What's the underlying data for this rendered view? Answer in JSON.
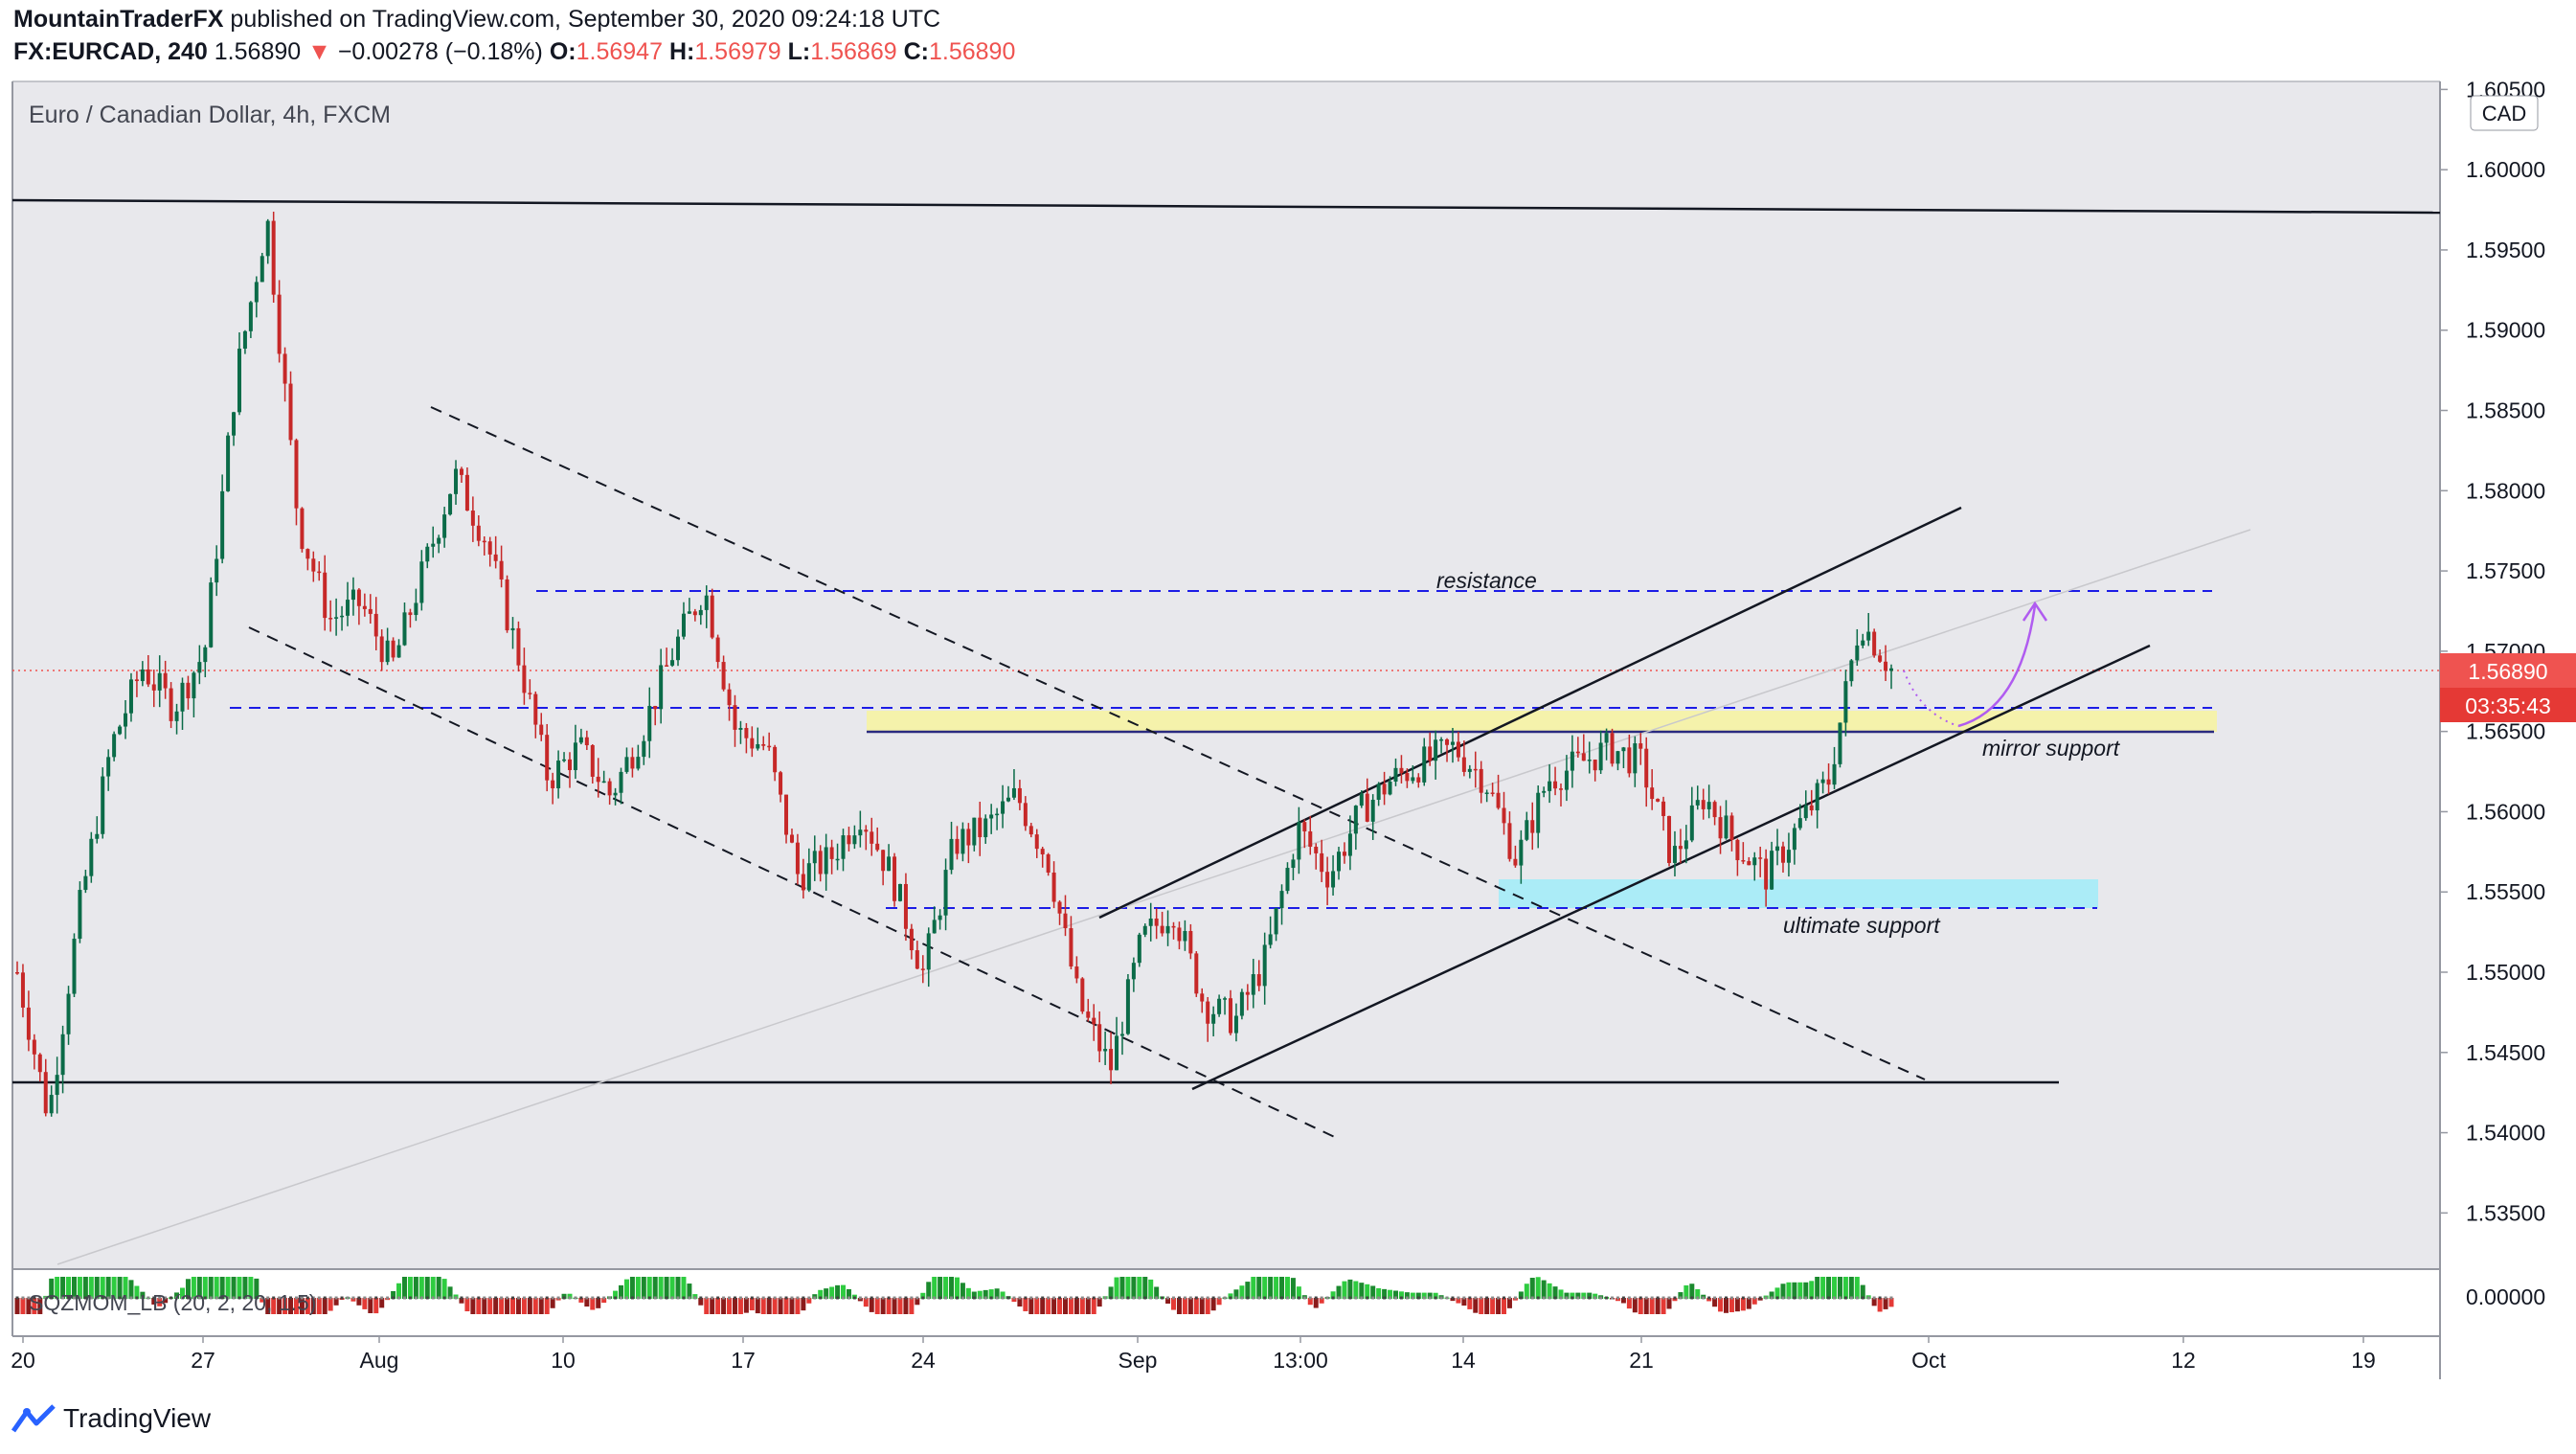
{
  "header": {
    "author": "MountainTraderFX",
    "published_text": " published on TradingView.com, September 30, 2020 09:24:18 UTC",
    "symbol": "FX:EURCAD, 240",
    "last_price": "1.56890",
    "change": "−0.00278 (−0.18%)",
    "open_label": "O:",
    "open": "1.56947",
    "high_label": "H:",
    "high": "1.56979",
    "low_label": "L:",
    "low": "1.56869",
    "close_label": "C:",
    "close": "1.56890"
  },
  "chart_title": "Euro / Canadian Dollar, 4h, FXCM",
  "currency_badge": "CAD",
  "price_badge": "1.56890",
  "countdown_badge": "03:35:43",
  "indicator_label": "SQZMOM_LB (20, 2, 20, 1.5)",
  "indicator_axis_label": "0.00000",
  "annotations": {
    "resistance": "resistance",
    "mirror_support": "mirror support",
    "ultimate_support": "ultimate support"
  },
  "brand": "TradingView",
  "colors": {
    "bull": "#26a69a",
    "bear": "#ef5350",
    "bull_dark": "#0b6b48",
    "bear_dark": "#c62828",
    "background": "#e8e8ec",
    "guide_blue": "#1c1ce6",
    "yellow_zone": "#f5f2a8",
    "cyan_zone": "#a8ecf8",
    "arrow": "#b05cf0"
  },
  "chart_data": {
    "type": "candlestick",
    "title": "Euro / Canadian Dollar, 4h, FXCM",
    "y_axis": {
      "ticks": [
        "1.60500",
        "1.60000",
        "1.59500",
        "1.59000",
        "1.58500",
        "1.58000",
        "1.57500",
        "1.57000",
        "1.56500",
        "1.56000",
        "1.55500",
        "1.55000",
        "1.54500",
        "1.54000",
        "1.53500"
      ],
      "range": [
        1.5315,
        1.6055
      ]
    },
    "x_axis": {
      "ticks": [
        "20",
        "27",
        "Aug",
        "10",
        "17",
        "24",
        "Sep",
        "13:00",
        "14",
        "21",
        "Oct",
        "12",
        "19"
      ]
    },
    "price_path": [
      [
        "Jul 20",
        1.55
      ],
      [
        "Jul 21",
        1.541
      ],
      [
        "Jul 23",
        1.554
      ],
      [
        "Jul 26",
        1.564
      ],
      [
        "Jul 27",
        1.569
      ],
      [
        "Jul 28",
        1.5665
      ],
      [
        "Jul 29",
        1.57
      ],
      [
        "Jul 30",
        1.587
      ],
      [
        "Jul 31",
        1.597
      ],
      [
        "Aug 3",
        1.578
      ],
      [
        "Aug 4",
        1.572
      ],
      [
        "Aug 5",
        1.573
      ],
      [
        "Aug 6",
        1.569
      ],
      [
        "Aug 7",
        1.575
      ],
      [
        "Aug 8",
        1.581
      ],
      [
        "Aug 10",
        1.577
      ],
      [
        "Aug 11",
        1.57
      ],
      [
        "Aug 12",
        1.562
      ],
      [
        "Aug 13",
        1.564
      ],
      [
        "Aug 14",
        1.561
      ],
      [
        "Aug 15",
        1.565
      ],
      [
        "Aug 17",
        1.57
      ],
      [
        "Aug 19",
        1.574
      ],
      [
        "Aug 21",
        1.565
      ],
      [
        "Aug 22",
        1.564
      ],
      [
        "Aug 24",
        1.556
      ],
      [
        "Aug 25",
        1.557
      ],
      [
        "Aug 26",
        1.56
      ],
      [
        "Aug 27",
        1.556
      ],
      [
        "Aug 28",
        1.55
      ],
      [
        "Aug 29",
        1.558
      ],
      [
        "Aug 31",
        1.559
      ],
      [
        "Sep 1",
        1.561
      ],
      [
        "Sep 2",
        1.557
      ],
      [
        "Sep 3",
        1.548
      ],
      [
        "Sep 4",
        1.544
      ],
      [
        "Sep 5",
        1.552
      ],
      [
        "Sep 6",
        1.554
      ],
      [
        "Sep 7",
        1.548
      ],
      [
        "Sep 8",
        1.547
      ],
      [
        "Sep 9",
        1.551
      ],
      [
        "Sep 10",
        1.559
      ],
      [
        "Sep 11",
        1.556
      ],
      [
        "Sep 12",
        1.56
      ],
      [
        "Sep 13",
        1.562
      ],
      [
        "Sep 14",
        1.563
      ],
      [
        "Sep 15",
        1.564
      ],
      [
        "Sep 16",
        1.562
      ],
      [
        "Sep 17",
        1.557
      ],
      [
        "Sep 18",
        1.562
      ],
      [
        "Sep 19",
        1.563
      ],
      [
        "Sep 20",
        1.564
      ],
      [
        "Sep 21",
        1.563
      ],
      [
        "Sep 22",
        1.557
      ],
      [
        "Sep 23",
        1.561
      ],
      [
        "Sep 24",
        1.558
      ],
      [
        "Sep 25",
        1.556
      ],
      [
        "Sep 26",
        1.559
      ],
      [
        "Sep 28",
        1.562
      ],
      [
        "Sep 29",
        1.572
      ],
      [
        "Sep 30",
        1.5689
      ]
    ],
    "levels": {
      "resistance": 1.5736,
      "mirror_support_zone": [
        1.5651,
        1.5665
      ],
      "ultimate_support_zone": [
        1.554,
        1.5558
      ],
      "last_price": 1.5689,
      "top_horizontal": 1.5975,
      "bottom_horizontal": 1.5432
    }
  }
}
